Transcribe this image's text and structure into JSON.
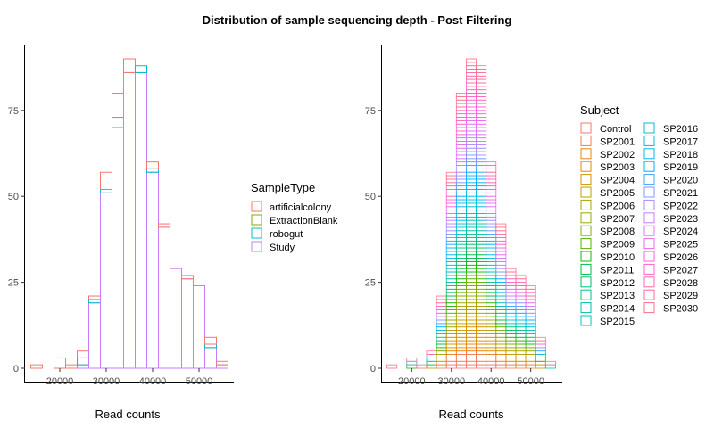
{
  "title": "Distribution of sample sequencing depth - Post Filtering",
  "chart_data": [
    {
      "type": "bar",
      "subtype": "histogram-stacked-outline",
      "xlabel": "Read counts",
      "ylabel": "",
      "x_ticks": [
        20000,
        30000,
        40000,
        50000
      ],
      "y_ticks": [
        0,
        25,
        50,
        75
      ],
      "xlim": [
        12500,
        57500
      ],
      "ylim": [
        0,
        90
      ],
      "bins": [
        15000,
        17500,
        20000,
        22500,
        25000,
        27500,
        30000,
        32500,
        35000,
        37500,
        40000,
        42500,
        45000,
        47500,
        50000,
        52500,
        55000
      ],
      "bin_width": 2500,
      "legend_title": "SampleType",
      "legend_position": "right",
      "series": [
        {
          "name": "artificialcolony",
          "color": "#F8766D",
          "values": [
            1,
            0,
            3,
            1,
            2,
            1,
            5,
            7,
            4,
            0,
            2,
            1,
            0,
            1,
            0,
            2,
            1
          ]
        },
        {
          "name": "ExtractionBlank",
          "color": "#7CAE00",
          "values": [
            0,
            0,
            0,
            0,
            0,
            0,
            0,
            0,
            0,
            0,
            0,
            0,
            0,
            0,
            0,
            0,
            0
          ]
        },
        {
          "name": "robogut",
          "color": "#00BFC4",
          "values": [
            0,
            0,
            0,
            0,
            2,
            1,
            1,
            3,
            0,
            2,
            1,
            0,
            0,
            0,
            0,
            1,
            0
          ]
        },
        {
          "name": "Study",
          "color": "#C77CFF",
          "values": [
            0,
            0,
            0,
            0,
            1,
            19,
            51,
            70,
            86,
            86,
            57,
            41,
            29,
            26,
            24,
            6,
            1
          ]
        }
      ]
    },
    {
      "type": "bar",
      "subtype": "histogram-stacked-outline",
      "xlabel": "Read counts",
      "ylabel": "",
      "x_ticks": [
        20000,
        30000,
        40000,
        50000
      ],
      "y_ticks": [
        0,
        25,
        50,
        75
      ],
      "xlim": [
        12500,
        57500
      ],
      "ylim": [
        0,
        90
      ],
      "bins": [
        15000,
        17500,
        20000,
        22500,
        25000,
        27500,
        30000,
        32500,
        35000,
        37500,
        40000,
        42500,
        45000,
        47500,
        50000,
        52500,
        55000
      ],
      "bin_width": 2500,
      "totals": [
        1,
        0,
        3,
        1,
        5,
        21,
        57,
        80,
        90,
        88,
        60,
        42,
        29,
        27,
        24,
        9,
        2
      ],
      "legend_title": "Subject",
      "legend_position": "right",
      "legend_entries": [
        "Control",
        "SP2001",
        "SP2002",
        "SP2003",
        "SP2004",
        "SP2005",
        "SP2006",
        "SP2007",
        "SP2008",
        "SP2009",
        "SP2010",
        "SP2011",
        "SP2012",
        "SP2013",
        "SP2014",
        "SP2015",
        "SP2016",
        "SP2017",
        "SP2018",
        "SP2019",
        "SP2020",
        "SP2021",
        "SP2022",
        "SP2023",
        "SP2024",
        "SP2025",
        "SP2026",
        "SP2027",
        "SP2028",
        "SP2029",
        "SP2030"
      ],
      "legend_colors": [
        "#F8766D",
        "#F17D50",
        "#E8850E",
        "#DD8D00",
        "#CF9400",
        "#BE9C00",
        "#AAA300",
        "#93AA00",
        "#77AF00",
        "#54B400",
        "#14B800",
        "#00BB44",
        "#00BE6A",
        "#00C088",
        "#00C1A3",
        "#00C1BB",
        "#00BFD2",
        "#00BCE6",
        "#00B7F8",
        "#00AFFF",
        "#3CA5FF",
        "#7C99FF",
        "#A78BFF",
        "#C77CFF",
        "#DF70F8",
        "#EF67EB",
        "#FA62DB",
        "#FF61C9",
        "#FF64B5",
        "#FF699F",
        "#FD6F86"
      ]
    }
  ]
}
